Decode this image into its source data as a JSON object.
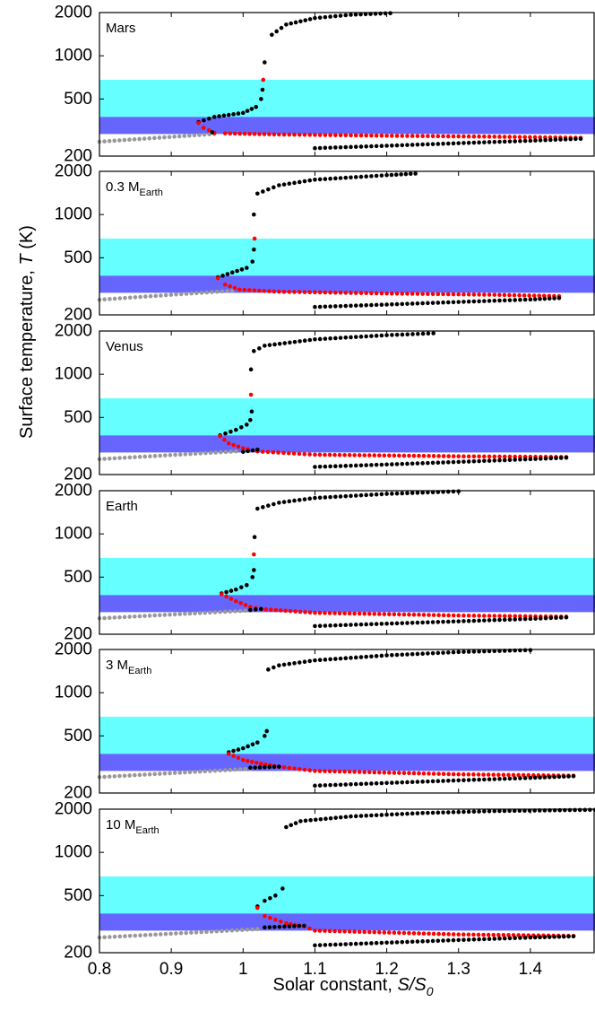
{
  "chart_data": {
    "type": "scatter",
    "xlabel": {
      "text": "Solar constant, ",
      "italic": "S/S",
      "sub": "0"
    },
    "ylabel": {
      "text": "Surface temperature, ",
      "italic": "T",
      "suffix": " (K)"
    },
    "xlim": [
      0.8,
      1.49
    ],
    "ylim": [
      200,
      2000
    ],
    "y_scale": "log",
    "x_tick_labels": [
      "0.8",
      "0.9",
      "1",
      "1.1",
      "1.2",
      "1.3",
      "1.4"
    ],
    "y_tick_labels": [
      "200",
      "500",
      "1000",
      "2000"
    ],
    "bands": [
      {
        "name": "light",
        "range": [
          375,
          680
        ],
        "color": "#66ffff"
      },
      {
        "name": "dark",
        "range": [
          285,
          375
        ],
        "color": "#6666ff"
      }
    ],
    "series_colors": {
      "stable": "#000000",
      "unstable": "#ff0000",
      "snowball": "#999999"
    },
    "panels": [
      {
        "label": "Mars",
        "label_sub": "",
        "segments": [
          {
            "kind": "snowball",
            "points": [
              [
                0.8,
                252
              ],
              [
                0.96,
                285
              ]
            ]
          },
          {
            "kind": "stable",
            "points": [
              [
                0.938,
                345
              ],
              [
                0.96,
                375
              ],
              [
                1.0,
                400
              ],
              [
                1.018,
                440
              ],
              [
                1.025,
                500
              ],
              [
                1.027,
                580
              ]
            ]
          },
          {
            "kind": "unstable",
            "points": [
              [
                1.028,
                680
              ]
            ]
          },
          {
            "kind": "stable",
            "points": [
              [
                1.03,
                900
              ],
              [
                1.04,
                1400
              ],
              [
                1.06,
                1650
              ],
              [
                1.1,
                1830
              ],
              [
                1.15,
                1930
              ],
              [
                1.205,
                1980
              ]
            ]
          },
          {
            "kind": "unstable",
            "points": [
              [
                0.96,
                290
              ],
              [
                0.945,
                315
              ],
              [
                0.938,
                340
              ]
            ]
          },
          {
            "kind": "stable",
            "points": [
              [
                0.957,
                293
              ]
            ]
          },
          {
            "kind": "unstable",
            "points": [
              [
                0.975,
                288
              ],
              [
                1.05,
                283
              ],
              [
                1.2,
                277
              ],
              [
                1.35,
                273
              ],
              [
                1.47,
                268
              ]
            ]
          },
          {
            "kind": "stable",
            "points": [
              [
                1.1,
                227
              ],
              [
                1.2,
                236
              ],
              [
                1.3,
                246
              ],
              [
                1.4,
                256
              ],
              [
                1.47,
                264
              ]
            ]
          }
        ]
      },
      {
        "label": "0.3 M",
        "label_sub": "Earth",
        "segments": [
          {
            "kind": "snowball",
            "points": [
              [
                0.8,
                255
              ],
              [
                0.985,
                295
              ]
            ]
          },
          {
            "kind": "stable",
            "points": [
              [
                0.965,
                365
              ],
              [
                0.985,
                395
              ],
              [
                1.005,
                425
              ],
              [
                1.013,
                470
              ],
              [
                1.015,
                570
              ]
            ]
          },
          {
            "kind": "unstable",
            "points": [
              [
                1.016,
                680
              ]
            ]
          },
          {
            "kind": "stable",
            "points": [
              [
                1.015,
                1000
              ],
              [
                1.02,
                1400
              ],
              [
                1.05,
                1600
              ],
              [
                1.1,
                1750
              ],
              [
                1.2,
                1880
              ],
              [
                1.24,
                1930
              ]
            ]
          },
          {
            "kind": "unstable",
            "points": [
              [
                0.965,
                360
              ],
              [
                0.975,
                325
              ],
              [
                0.995,
                300
              ],
              [
                1.05,
                290
              ],
              [
                1.2,
                282
              ],
              [
                1.35,
                276
              ],
              [
                1.44,
                270
              ]
            ]
          },
          {
            "kind": "stable",
            "points": [
              [
                1.1,
                227
              ],
              [
                1.2,
                236
              ],
              [
                1.3,
                246
              ],
              [
                1.4,
                256
              ],
              [
                1.44,
                262
              ]
            ]
          }
        ]
      },
      {
        "label": "Venus",
        "label_sub": "",
        "segments": [
          {
            "kind": "snowball",
            "points": [
              [
                0.8,
                256
              ],
              [
                0.99,
                290
              ]
            ]
          },
          {
            "kind": "stable",
            "points": [
              [
                0.968,
                375
              ],
              [
                0.99,
                410
              ],
              [
                1.005,
                445
              ],
              [
                1.01,
                480
              ],
              [
                1.012,
                550
              ]
            ]
          },
          {
            "kind": "unstable",
            "points": [
              [
                1.011,
                720
              ]
            ]
          },
          {
            "kind": "stable",
            "points": [
              [
                1.011,
                1080
              ],
              [
                1.015,
                1450
              ],
              [
                1.03,
                1580
              ],
              [
                1.1,
                1750
              ],
              [
                1.2,
                1870
              ],
              [
                1.265,
                1930
              ]
            ]
          },
          {
            "kind": "unstable",
            "points": [
              [
                0.968,
                370
              ],
              [
                0.98,
                330
              ],
              [
                1.0,
                305
              ],
              [
                1.02,
                290
              ],
              [
                1.1,
                275
              ],
              [
                1.3,
                268
              ],
              [
                1.45,
                265
              ]
            ]
          },
          {
            "kind": "stable",
            "points": [
              [
                1.0,
                288
              ],
              [
                1.02,
                298
              ]
            ]
          },
          {
            "kind": "stable",
            "points": [
              [
                1.1,
                226
              ],
              [
                1.2,
                235
              ],
              [
                1.3,
                245
              ],
              [
                1.4,
                256
              ],
              [
                1.45,
                262
              ]
            ]
          }
        ]
      },
      {
        "label": "Earth",
        "label_sub": "",
        "segments": [
          {
            "kind": "snowball",
            "points": [
              [
                0.8,
                258
              ],
              [
                1.01,
                293
              ]
            ]
          },
          {
            "kind": "stable",
            "points": [
              [
                0.97,
                385
              ],
              [
                0.99,
                410
              ],
              [
                1.005,
                440
              ],
              [
                1.013,
                500
              ],
              [
                1.015,
                560
              ]
            ]
          },
          {
            "kind": "unstable",
            "points": [
              [
                1.015,
                720
              ]
            ]
          },
          {
            "kind": "stable",
            "points": [
              [
                1.016,
                950
              ],
              [
                1.02,
                1500
              ],
              [
                1.05,
                1650
              ],
              [
                1.1,
                1780
              ],
              [
                1.2,
                1900
              ],
              [
                1.3,
                1980
              ]
            ]
          },
          {
            "kind": "unstable",
            "points": [
              [
                0.97,
                380
              ],
              [
                0.99,
                340
              ],
              [
                1.01,
                310
              ],
              [
                1.025,
                300
              ],
              [
                1.1,
                282
              ],
              [
                1.3,
                270
              ],
              [
                1.45,
                265
              ]
            ]
          },
          {
            "kind": "stable",
            "points": [
              [
                1.01,
                295
              ],
              [
                1.025,
                300
              ]
            ]
          },
          {
            "kind": "stable",
            "points": [
              [
                1.1,
                228
              ],
              [
                1.2,
                237
              ],
              [
                1.3,
                246
              ],
              [
                1.4,
                256
              ],
              [
                1.45,
                262
              ]
            ]
          }
        ]
      },
      {
        "label": "3 M",
        "label_sub": "Earth",
        "segments": [
          {
            "kind": "snowball",
            "points": [
              [
                0.8,
                258
              ],
              [
                1.01,
                295
              ]
            ]
          },
          {
            "kind": "stable",
            "points": [
              [
                0.98,
                385
              ],
              [
                1.0,
                410
              ],
              [
                1.02,
                450
              ],
              [
                1.03,
                500
              ],
              [
                1.033,
                540
              ]
            ]
          },
          {
            "kind": "stable",
            "points": [
              [
                1.035,
                1450
              ],
              [
                1.05,
                1550
              ],
              [
                1.1,
                1680
              ],
              [
                1.2,
                1820
              ],
              [
                1.3,
                1920
              ],
              [
                1.4,
                1980
              ]
            ]
          },
          {
            "kind": "unstable",
            "points": [
              [
                0.98,
                375
              ],
              [
                1.0,
                340
              ],
              [
                1.025,
                320
              ],
              [
                1.05,
                305
              ],
              [
                1.1,
                285
              ],
              [
                1.3,
                270
              ],
              [
                1.46,
                264
              ]
            ]
          },
          {
            "kind": "stable",
            "points": [
              [
                1.01,
                300
              ],
              [
                1.05,
                305
              ]
            ]
          },
          {
            "kind": "stable",
            "points": [
              [
                1.1,
                225
              ],
              [
                1.2,
                235
              ],
              [
                1.3,
                245
              ],
              [
                1.4,
                255
              ],
              [
                1.46,
                262
              ]
            ]
          }
        ]
      },
      {
        "label": "10 M",
        "label_sub": "Earth",
        "segments": [
          {
            "kind": "snowball",
            "points": [
              [
                0.8,
                255
              ],
              [
                1.02,
                292
              ]
            ]
          },
          {
            "kind": "stable",
            "points": [
              [
                1.02,
                420
              ],
              [
                1.03,
                460
              ],
              [
                1.045,
                500
              ],
              [
                1.055,
                560
              ]
            ]
          },
          {
            "kind": "stable",
            "points": [
              [
                1.06,
                1500
              ],
              [
                1.08,
                1650
              ],
              [
                1.15,
                1780
              ],
              [
                1.25,
                1880
              ],
              [
                1.35,
                1940
              ],
              [
                1.49,
                1980
              ]
            ]
          },
          {
            "kind": "unstable",
            "points": [
              [
                1.02,
                410
              ],
              [
                1.03,
                360
              ],
              [
                1.06,
                320
              ],
              [
                1.085,
                305
              ],
              [
                1.1,
                285
              ],
              [
                1.3,
                268
              ],
              [
                1.46,
                262
              ]
            ]
          },
          {
            "kind": "stable",
            "points": [
              [
                1.03,
                300
              ],
              [
                1.085,
                308
              ]
            ]
          },
          {
            "kind": "stable",
            "points": [
              [
                1.1,
                225
              ],
              [
                1.2,
                235
              ],
              [
                1.3,
                245
              ],
              [
                1.4,
                255
              ],
              [
                1.46,
                260
              ]
            ]
          }
        ]
      }
    ]
  }
}
